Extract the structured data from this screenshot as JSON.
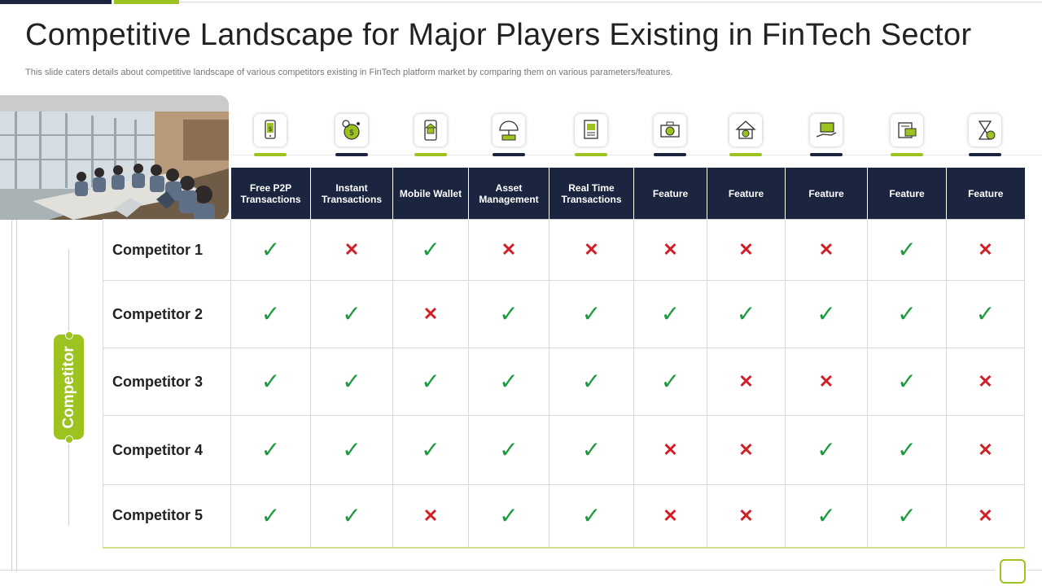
{
  "title": "Competitive Landscape for Major Players Existing in FinTech Sector",
  "subtitle": "This slide caters details about competitive landscape of various competitors existing in FinTech platform market by comparing them on various parameters/features.",
  "side_label": "Competitor",
  "colors": {
    "navy": "#1b2540",
    "green": "#9cc31f",
    "check": "#1d9a3e",
    "cross": "#d21f26"
  },
  "marks": {
    "check": "✓",
    "cross": "✕"
  },
  "features": [
    {
      "label": "Free P2P Transactions",
      "icon": "mobile-payment-icon",
      "underline": "green"
    },
    {
      "label": "Instant Transactions",
      "icon": "coin-gear-icon",
      "underline": "navy"
    },
    {
      "label": "Mobile Wallet",
      "icon": "mobile-home-icon",
      "underline": "green"
    },
    {
      "label": "Asset Management",
      "icon": "umbrella-money-icon",
      "underline": "navy"
    },
    {
      "label": "Real Time Transactions",
      "icon": "document-money-icon",
      "underline": "green"
    },
    {
      "label": "Feature",
      "icon": "cash-coin-icon",
      "underline": "navy"
    },
    {
      "label": "Feature",
      "icon": "house-coin-icon",
      "underline": "green"
    },
    {
      "label": "Feature",
      "icon": "hand-money-icon",
      "underline": "navy"
    },
    {
      "label": "Feature",
      "icon": "bill-card-icon",
      "underline": "green"
    },
    {
      "label": "Feature",
      "icon": "hourglass-coin-icon",
      "underline": "navy"
    }
  ],
  "competitors": [
    {
      "name": "Competitor 1",
      "values": [
        "check",
        "cross",
        "check",
        "cross",
        "cross",
        "cross",
        "cross",
        "cross",
        "check",
        "cross"
      ]
    },
    {
      "name": "Competitor 2",
      "values": [
        "check",
        "check",
        "cross",
        "check",
        "check",
        "check",
        "check",
        "check",
        "check",
        "check"
      ]
    },
    {
      "name": "Competitor 3",
      "values": [
        "check",
        "check",
        "check",
        "check",
        "check",
        "check",
        "cross",
        "cross",
        "check",
        "cross"
      ]
    },
    {
      "name": "Competitor 4",
      "values": [
        "check",
        "check",
        "check",
        "check",
        "check",
        "cross",
        "cross",
        "check",
        "check",
        "cross"
      ]
    },
    {
      "name": "Competitor 5",
      "values": [
        "check",
        "check",
        "cross",
        "check",
        "check",
        "cross",
        "cross",
        "check",
        "check",
        "cross"
      ]
    }
  ]
}
